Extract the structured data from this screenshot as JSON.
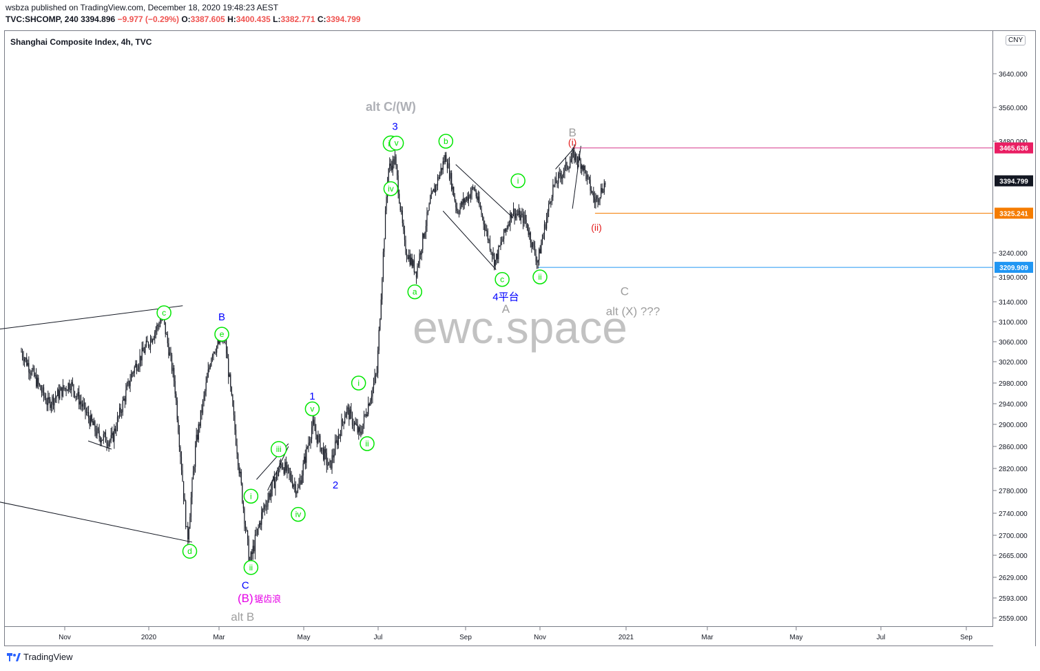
{
  "header": {
    "published": "wsbza published on TradingView.com, December 18, 2020 19:48:23 AEST",
    "symbol": "TVC:SHCOMP, 240",
    "last": "3394.896",
    "change": "−9.977 (−0.29%)",
    "o_label": "O:",
    "o_value": "3387.605",
    "h_label": "H:",
    "h_value": "3400.435",
    "l_label": "L:",
    "l_value": "3382.771",
    "c_label": "C:",
    "c_value": "3394.799"
  },
  "chart_title": "Shanghai Composite Index, 4h, TVC",
  "currency": "CNY",
  "watermark": "ewc.space",
  "footer_brand": "TradingView",
  "colors": {
    "candle": "#131722",
    "wave_green": "#00e600",
    "wave_blue": "#0000ff",
    "wave_gray": "#9e9e9e",
    "wave_red": "#e31b1b",
    "wave_magenta": "#e600e6",
    "level_pink": "#d6378a",
    "level_orange": "#f57c00",
    "level_blue": "#2196f3",
    "level_dark": "#131722"
  },
  "chart_data": {
    "type": "candlestick",
    "x_ticks": [
      "Nov",
      "2020",
      "Mar",
      "May",
      "Jul",
      "Sep",
      "Nov",
      "2021",
      "Mar",
      "May",
      "Jul",
      "Sep"
    ],
    "y_ticks": [
      "3640.000",
      "3560.000",
      "3480.000",
      "3240.000",
      "3190.000",
      "3140.000",
      "3100.000",
      "3060.000",
      "3020.000",
      "2980.000",
      "2940.000",
      "2900.000",
      "2860.000",
      "2820.000",
      "2780.000",
      "2740.000",
      "2700.000",
      "2665.000",
      "2629.000",
      "2593.000",
      "2559.000"
    ],
    "price_tags": [
      {
        "value": "3465.636",
        "color": "#e91e63"
      },
      {
        "value": "3394.799",
        "color": "#131722"
      },
      {
        "value": "3325.241",
        "color": "#f57c00"
      },
      {
        "value": "3209.909",
        "color": "#2196f3"
      }
    ],
    "price_path_anchors": [
      [
        "2019-10-01",
        3040
      ],
      [
        "2019-10-20",
        2940
      ],
      [
        "2019-11-05",
        2980
      ],
      [
        "2019-11-25",
        2880
      ],
      [
        "2019-12-05",
        2870
      ],
      [
        "2019-12-20",
        3000
      ],
      [
        "2020-01-13",
        3110
      ],
      [
        "2020-01-23",
        2980
      ],
      [
        "2020-02-03",
        2690
      ],
      [
        "2020-02-10",
        2860
      ],
      [
        "2020-02-24",
        3040
      ],
      [
        "2020-03-05",
        3070
      ],
      [
        "2020-03-12",
        2900
      ],
      [
        "2020-03-23",
        2650
      ],
      [
        "2020-04-01",
        2740
      ],
      [
        "2020-04-15",
        2830
      ],
      [
        "2020-04-27",
        2780
      ],
      [
        "2020-05-08",
        2900
      ],
      [
        "2020-05-22",
        2820
      ],
      [
        "2020-06-05",
        2930
      ],
      [
        "2020-06-16",
        2880
      ],
      [
        "2020-06-30",
        3000
      ],
      [
        "2020-07-03",
        3150
      ],
      [
        "2020-07-08",
        3420
      ],
      [
        "2020-07-13",
        3440
      ],
      [
        "2020-07-20",
        3250
      ],
      [
        "2020-07-28",
        3200
      ],
      [
        "2020-08-07",
        3350
      ],
      [
        "2020-08-18",
        3450
      ],
      [
        "2020-08-26",
        3330
      ],
      [
        "2020-09-08",
        3380
      ],
      [
        "2020-09-25",
        3220
      ],
      [
        "2020-10-09",
        3330
      ],
      [
        "2020-10-20",
        3310
      ],
      [
        "2020-10-30",
        3220
      ],
      [
        "2020-11-10",
        3380
      ],
      [
        "2020-11-25",
        3450
      ],
      [
        "2020-12-01",
        3430
      ],
      [
        "2020-12-10",
        3350
      ],
      [
        "2020-12-18",
        3395
      ]
    ],
    "wave_labels": [
      {
        "text": "c",
        "date": "2020-01-14",
        "price": 3118,
        "style": "green-circle"
      },
      {
        "text": "d",
        "date": "2020-02-05",
        "price": 2672,
        "style": "green-circle"
      },
      {
        "text": "B",
        "date": "2020-03-03",
        "price": 3110,
        "style": "blue"
      },
      {
        "text": "e",
        "date": "2020-03-03",
        "price": 3075,
        "style": "green-circle"
      },
      {
        "text": "i",
        "date": "2020-03-24",
        "price": 2770,
        "style": "green-circle"
      },
      {
        "text": "ii",
        "date": "2020-03-24",
        "price": 2645,
        "style": "green-circle"
      },
      {
        "text": "C",
        "date": "2020-03-20",
        "price": 2615,
        "style": "blue"
      },
      {
        "text": "(B)",
        "date": "2020-03-20",
        "price": 2592,
        "style": "magenta-large"
      },
      {
        "text": "锯齿浪",
        "date": "2020-04-05",
        "price": 2592,
        "style": "magenta-small"
      },
      {
        "text": "alt B",
        "date": "2020-03-18",
        "price": 2560,
        "style": "gray"
      },
      {
        "text": "iii",
        "date": "2020-04-13",
        "price": 2855,
        "style": "green-circle"
      },
      {
        "text": "iv",
        "date": "2020-04-27",
        "price": 2738,
        "style": "green-circle"
      },
      {
        "text": "1",
        "date": "2020-05-08",
        "price": 2955,
        "style": "blue"
      },
      {
        "text": "v",
        "date": "2020-05-08",
        "price": 2930,
        "style": "green-circle"
      },
      {
        "text": "2",
        "date": "2020-05-27",
        "price": 2790,
        "style": "blue"
      },
      {
        "text": "i",
        "date": "2020-06-15",
        "price": 2980,
        "style": "green-circle"
      },
      {
        "text": "ii",
        "date": "2020-06-22",
        "price": 2865,
        "style": "green-circle"
      },
      {
        "text": "alt C/(W)",
        "date": "2020-07-10",
        "price": 3560,
        "style": "gray-large"
      },
      {
        "text": "3",
        "date": "2020-07-13",
        "price": 3515,
        "style": "blue"
      },
      {
        "text": "iii",
        "date": "2020-07-10",
        "price": 3475,
        "style": "green-circle"
      },
      {
        "text": "v",
        "date": "2020-07-14",
        "price": 3476,
        "style": "green-circle"
      },
      {
        "text": "iv",
        "date": "2020-07-10",
        "price": 3378,
        "style": "green-circle"
      },
      {
        "text": "a",
        "date": "2020-07-27",
        "price": 3160,
        "style": "green-circle"
      },
      {
        "text": "b",
        "date": "2020-08-18",
        "price": 3480,
        "style": "green-circle"
      },
      {
        "text": "i",
        "date": "2020-10-14",
        "price": 3395,
        "style": "green-circle"
      },
      {
        "text": "c",
        "date": "2020-10-01",
        "price": 3185,
        "style": "green-circle"
      },
      {
        "text": "4平台",
        "date": "2020-10-04",
        "price": 3150,
        "style": "blue"
      },
      {
        "text": "A",
        "date": "2020-10-04",
        "price": 3125,
        "style": "gray"
      },
      {
        "text": "ii",
        "date": "2020-11-01",
        "price": 3190,
        "style": "green-circle"
      },
      {
        "text": "B",
        "date": "2020-11-24",
        "price": 3500,
        "style": "gray"
      },
      {
        "text": "(i)",
        "date": "2020-11-24",
        "price": 3478,
        "style": "red"
      },
      {
        "text": "(ii)",
        "date": "2020-12-11",
        "price": 3295,
        "style": "red"
      },
      {
        "text": "C",
        "date": "2020-12-31",
        "price": 3160,
        "style": "gray"
      },
      {
        "text": "alt (X) ???",
        "date": "2021-01-06",
        "price": 3120,
        "style": "gray"
      }
    ]
  }
}
